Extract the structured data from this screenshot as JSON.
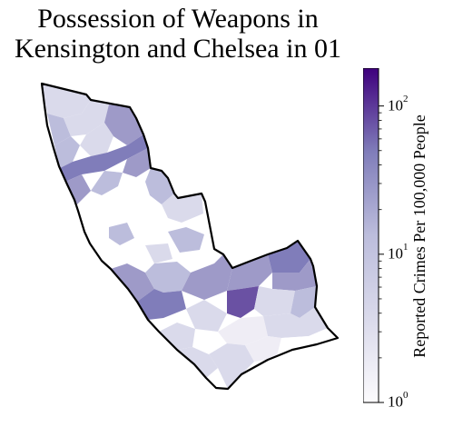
{
  "title_line1": "Possession of Weapons in",
  "title_line2": "Kensington and Chelsea in 01",
  "colorbar": {
    "label": "Reported Crimes Per 100,000 People",
    "scale": "log",
    "range": [
      1,
      180
    ],
    "ticks": [
      {
        "base": "10",
        "exp": "0",
        "value": 1
      },
      {
        "base": "10",
        "exp": "1",
        "value": 10
      },
      {
        "base": "10",
        "exp": "2",
        "value": 100
      }
    ],
    "color_low": "#fcfbfd",
    "color_high": "#3f007d"
  },
  "map": {
    "borough": "Kensington and Chelsea",
    "outline_color": "#000000",
    "fill_palette": [
      "#ffffff",
      "#efedf5",
      "#dadaeb",
      "#bcbddc",
      "#9e9ac8",
      "#807dba",
      "#6a51a3"
    ]
  }
}
